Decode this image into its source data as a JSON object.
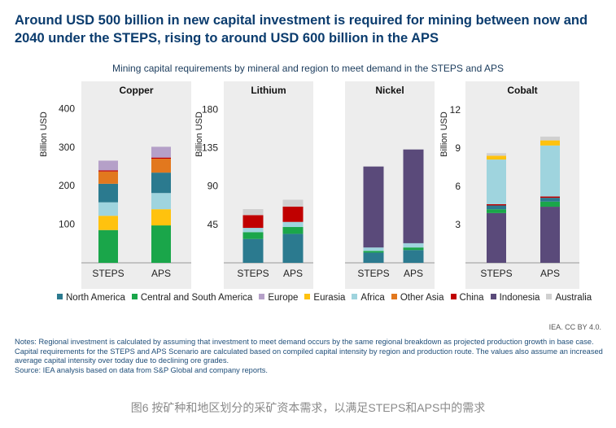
{
  "headline": "Around USD 500 billion in new capital investment is required for mining between now and 2040 under the STEPS, rising to around USD 600 billion in the APS",
  "subtitle": "Mining capital requirements by mineral and region to meet demand in the STEPS and APS",
  "ylabel": "Billion USD",
  "credit": "IEA. CC BY 4.0.",
  "notes": {
    "line1": "Notes: Regional investment is calculated by assuming that investment to meet demand occurs by the same regional breakdown as projected production growth in base case. Capital requirements for the STEPS and APS Scenario are calculated based on compiled capital intensity by region and production route. The values also assume an increased average capital intensity over today due to declining ore grades.",
    "line2": "Source: IEA analysis based on data from S&P Global and company reports."
  },
  "caption": "图6 按矿种和地区划分的采矿资本需求，以满足STEPS和APS中的需求",
  "colors": {
    "North America": "#2b7a8f",
    "Central and South America": "#1aa64a",
    "Europe": "#b5a0c8",
    "Eurasia": "#ffc20e",
    "Africa": "#9fd4de",
    "Other Asia": "#e2781e",
    "China": "#c00000",
    "Indonesia": "#5a4a7a",
    "Australia": "#d0d0d0"
  },
  "legend": [
    "North America",
    "Central and South America",
    "Europe",
    "Eurasia",
    "Africa",
    "Other Asia",
    "China",
    "Indonesia",
    "Australia"
  ],
  "chart_data": [
    {
      "type": "bar",
      "stacked": true,
      "title": "Copper",
      "ylabel": "Billion USD",
      "ylim": [
        0,
        420
      ],
      "yticks": [
        "100",
        "200",
        "300",
        "400"
      ],
      "categories": [
        "STEPS",
        "APS"
      ],
      "series": [
        {
          "name": "Central and South America",
          "values": [
            85,
            97
          ]
        },
        {
          "name": "Eurasia",
          "values": [
            37,
            42
          ]
        },
        {
          "name": "Africa",
          "values": [
            35,
            42
          ]
        },
        {
          "name": "North America",
          "values": [
            48,
            53
          ]
        },
        {
          "name": "Other Asia",
          "values": [
            32,
            36
          ]
        },
        {
          "name": "China",
          "values": [
            3,
            3
          ]
        },
        {
          "name": "Europe",
          "values": [
            25,
            28
          ]
        }
      ]
    },
    {
      "type": "bar",
      "stacked": true,
      "title": "Lithium",
      "ylabel": "Billion USD",
      "ylim": [
        0,
        190
      ],
      "yticks": [
        "45",
        "90",
        "135",
        "180"
      ],
      "categories": [
        "STEPS",
        "APS"
      ],
      "series": [
        {
          "name": "North America",
          "values": [
            28,
            34
          ]
        },
        {
          "name": "Central and South America",
          "values": [
            8,
            8
          ]
        },
        {
          "name": "Africa",
          "values": [
            5,
            6
          ]
        },
        {
          "name": "China",
          "values": [
            15,
            18
          ]
        },
        {
          "name": "Australia",
          "values": [
            7,
            8
          ]
        }
      ]
    },
    {
      "type": "bar",
      "stacked": true,
      "title": "Nickel",
      "ylabel": "",
      "ylim": [
        0,
        190
      ],
      "yticks": [],
      "categories": [
        "STEPS",
        "APS"
      ],
      "series": [
        {
          "name": "North America",
          "values": [
            12,
            15
          ]
        },
        {
          "name": "Central and South America",
          "values": [
            2,
            3
          ]
        },
        {
          "name": "Africa",
          "values": [
            4,
            5
          ]
        },
        {
          "name": "Indonesia",
          "values": [
            95,
            110
          ]
        }
      ]
    },
    {
      "type": "bar",
      "stacked": true,
      "title": "Cobalt",
      "ylabel": "Billion USD",
      "ylim": [
        0,
        12.7
      ],
      "yticks": [
        "3",
        "6",
        "9",
        "12"
      ],
      "categories": [
        "STEPS",
        "APS"
      ],
      "series": [
        {
          "name": "Indonesia",
          "values": [
            3.9,
            4.4
          ]
        },
        {
          "name": "Central and South America",
          "values": [
            0.3,
            0.4
          ]
        },
        {
          "name": "North America",
          "values": [
            0.3,
            0.3
          ]
        },
        {
          "name": "China",
          "values": [
            0.1,
            0.1
          ]
        },
        {
          "name": "Africa",
          "values": [
            3.5,
            4.0
          ]
        },
        {
          "name": "Eurasia",
          "values": [
            0.3,
            0.4
          ]
        },
        {
          "name": "Australia",
          "values": [
            0.2,
            0.3
          ]
        }
      ]
    }
  ]
}
